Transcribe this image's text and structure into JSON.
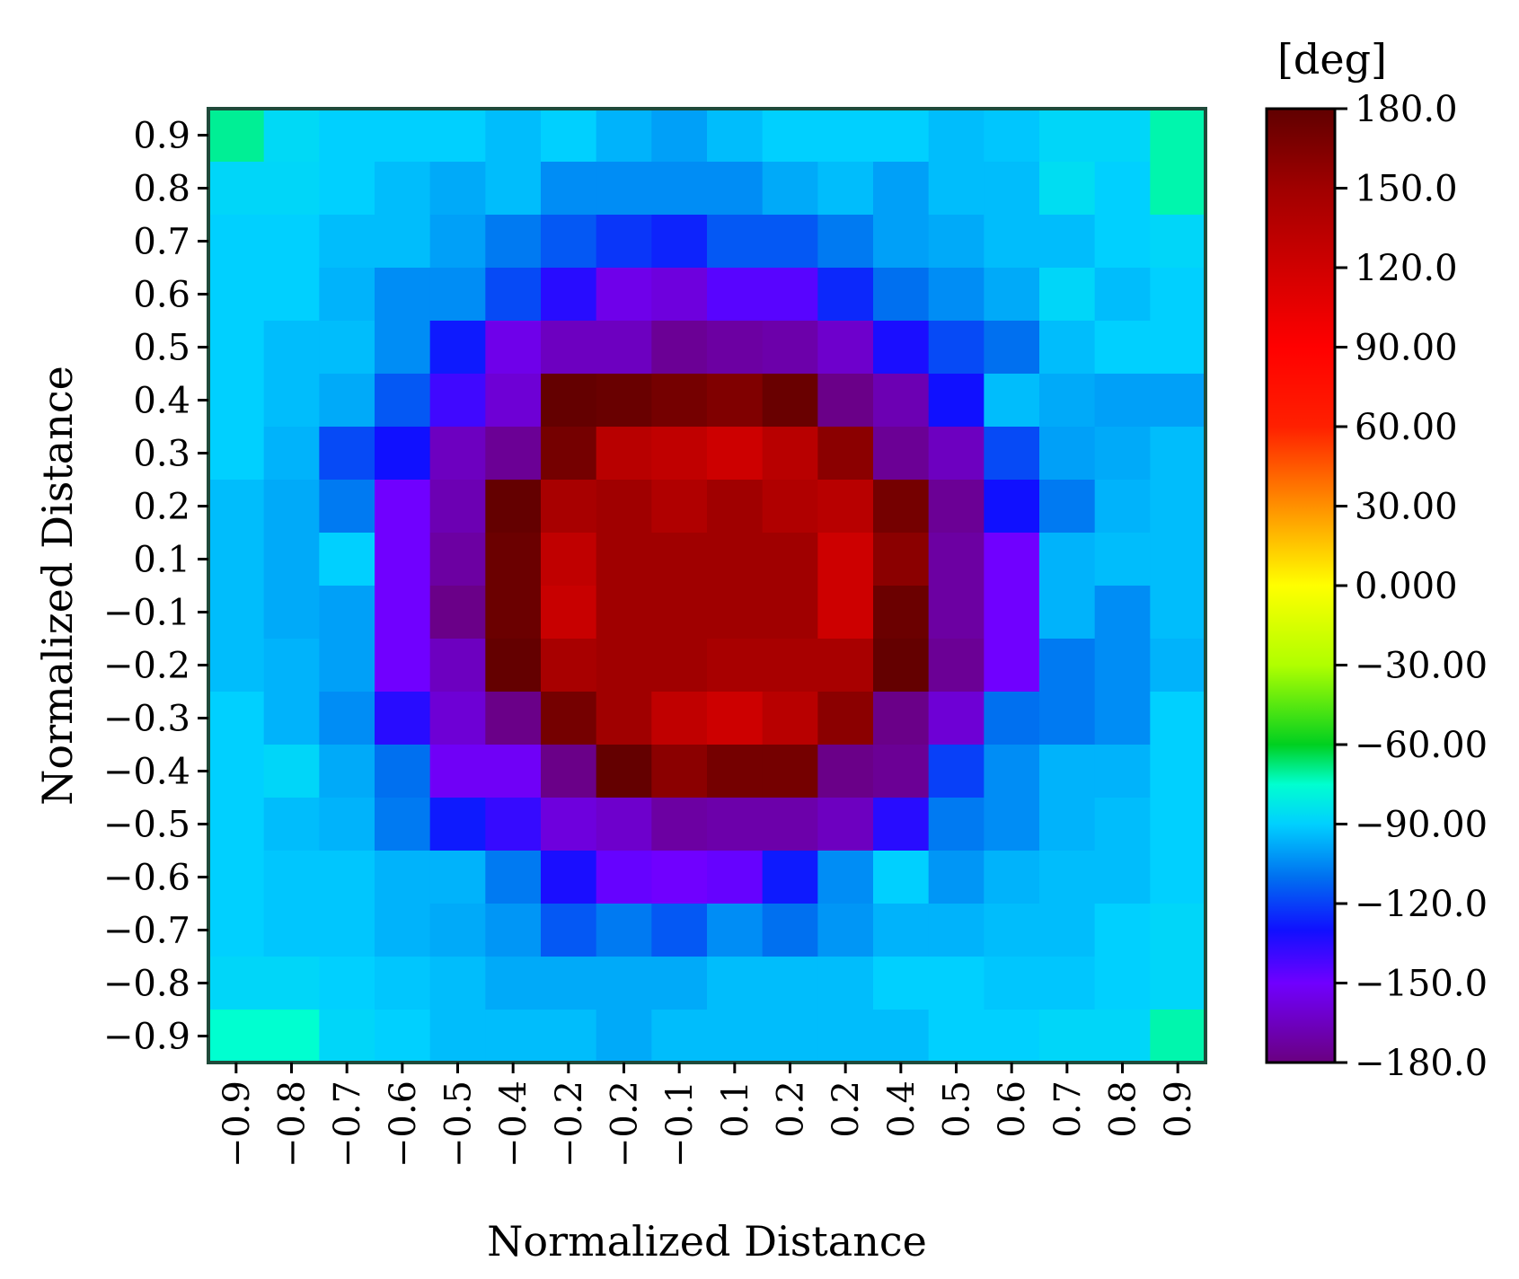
{
  "chart_data": {
    "type": "heatmap",
    "title": "",
    "xlabel": "Normalized Distance",
    "ylabel": "Normalized Distance",
    "x_tick_labels": [
      "−0.9",
      "−0.8",
      "−0.7",
      "−0.6",
      "−0.5",
      "−0.4",
      "−0.2",
      "−0.2",
      "−0.1",
      "0.1",
      "0.2",
      "0.2",
      "0.4",
      "0.5",
      "0.6",
      "0.7",
      "0.8",
      "0.9"
    ],
    "y_tick_labels": [
      "0.9",
      "0.8",
      "0.7",
      "0.6",
      "0.5",
      "0.4",
      "0.3",
      "0.2",
      "0.1",
      "−0.1",
      "−0.2",
      "−0.3",
      "−0.4",
      "−0.5",
      "−0.6",
      "−0.7",
      "−0.8",
      "−0.9"
    ],
    "grid": false,
    "colorbar": {
      "unit": "[deg]",
      "range": [
        -180,
        180
      ],
      "tick_labels": [
        "180.0",
        "150.0",
        "120.0",
        "90.00",
        "60.00",
        "30.00",
        "0.000",
        "−30.00",
        "−60.00",
        "−90.00",
        "−120.0",
        "−150.0",
        "−180.0"
      ],
      "colors": [
        {
          "value": -180,
          "color": "#6a0080"
        },
        {
          "value": -150,
          "color": "#7000ff"
        },
        {
          "value": -130,
          "color": "#1010ff"
        },
        {
          "value": -110,
          "color": "#0070f0"
        },
        {
          "value": -90,
          "color": "#00d0ff"
        },
        {
          "value": -75,
          "color": "#00ffd0"
        },
        {
          "value": -60,
          "color": "#00d020"
        },
        {
          "value": -30,
          "color": "#b0ff00"
        },
        {
          "value": 0,
          "color": "#ffff00"
        },
        {
          "value": 30,
          "color": "#ff9000"
        },
        {
          "value": 60,
          "color": "#ff2000"
        },
        {
          "value": 90,
          "color": "#ff0000"
        },
        {
          "value": 120,
          "color": "#d00000"
        },
        {
          "value": 150,
          "color": "#a00000"
        },
        {
          "value": 180,
          "color": "#600000"
        }
      ]
    },
    "z": [
      [
        -70,
        -87,
        -90,
        -90,
        -90,
        -94,
        -90,
        -96,
        -100,
        -94,
        -90,
        -90,
        -90,
        -94,
        -92,
        -88,
        -88,
        -72
      ],
      [
        -88,
        -88,
        -90,
        -94,
        -98,
        -94,
        -104,
        -104,
        -104,
        -104,
        -98,
        -94,
        -100,
        -94,
        -94,
        -86,
        -90,
        -72
      ],
      [
        -90,
        -90,
        -94,
        -94,
        -100,
        -108,
        -115,
        -122,
        -126,
        -115,
        -115,
        -108,
        -100,
        -98,
        -94,
        -94,
        -90,
        -88
      ],
      [
        -90,
        -90,
        -96,
        -104,
        -104,
        -118,
        -135,
        -155,
        -158,
        -145,
        -145,
        -125,
        -110,
        -104,
        -98,
        -88,
        -94,
        -90
      ],
      [
        -90,
        -94,
        -94,
        -104,
        -128,
        -155,
        -165,
        -165,
        -175,
        -172,
        -170,
        -162,
        -132,
        -118,
        -110,
        -94,
        -90,
        -90
      ],
      [
        -90,
        -94,
        -98,
        -115,
        -140,
        -160,
        178,
        176,
        170,
        165,
        176,
        -178,
        -168,
        -130,
        -94,
        -98,
        -100,
        -100
      ],
      [
        -90,
        -96,
        -118,
        -130,
        -165,
        -175,
        170,
        135,
        130,
        122,
        135,
        160,
        -175,
        -165,
        -118,
        -100,
        -98,
        -94
      ],
      [
        -94,
        -98,
        -108,
        -150,
        -168,
        178,
        145,
        150,
        140,
        150,
        140,
        135,
        170,
        -175,
        -130,
        -108,
        -96,
        -94
      ],
      [
        -94,
        -98,
        -90,
        -150,
        -172,
        175,
        130,
        150,
        150,
        150,
        150,
        122,
        160,
        -172,
        -150,
        -96,
        -94,
        -94
      ],
      [
        -94,
        -98,
        -100,
        -150,
        -178,
        175,
        125,
        150,
        150,
        150,
        150,
        122,
        175,
        -172,
        -150,
        -96,
        -104,
        -94
      ],
      [
        -94,
        -96,
        -100,
        -150,
        -165,
        178,
        145,
        150,
        150,
        145,
        145,
        145,
        178,
        -175,
        -150,
        -108,
        -104,
        -96
      ],
      [
        -90,
        -96,
        -104,
        -135,
        -160,
        -178,
        170,
        150,
        130,
        122,
        135,
        160,
        -178,
        -160,
        -110,
        -108,
        -104,
        -90
      ],
      [
        -90,
        -88,
        -98,
        -110,
        -152,
        -152,
        -178,
        178,
        160,
        170,
        170,
        -178,
        -175,
        -120,
        -104,
        -96,
        -96,
        -90
      ],
      [
        -90,
        -94,
        -96,
        -108,
        -128,
        -138,
        -158,
        -162,
        -172,
        -170,
        -170,
        -165,
        -135,
        -108,
        -104,
        -96,
        -94,
        -90
      ],
      [
        -90,
        -92,
        -92,
        -96,
        -96,
        -108,
        -132,
        -148,
        -150,
        -148,
        -128,
        -104,
        -90,
        -102,
        -96,
        -94,
        -94,
        -90
      ],
      [
        -90,
        -92,
        -92,
        -96,
        -98,
        -102,
        -115,
        -108,
        -115,
        -104,
        -110,
        -102,
        -96,
        -96,
        -94,
        -94,
        -90,
        -88
      ],
      [
        -88,
        -88,
        -90,
        -92,
        -94,
        -98,
        -98,
        -98,
        -98,
        -94,
        -94,
        -94,
        -90,
        -90,
        -92,
        -92,
        -90,
        -88
      ],
      [
        -75,
        -75,
        -88,
        -90,
        -94,
        -94,
        -94,
        -98,
        -94,
        -94,
        -94,
        -94,
        -94,
        -90,
        -90,
        -88,
        -88,
        -72
      ]
    ]
  }
}
